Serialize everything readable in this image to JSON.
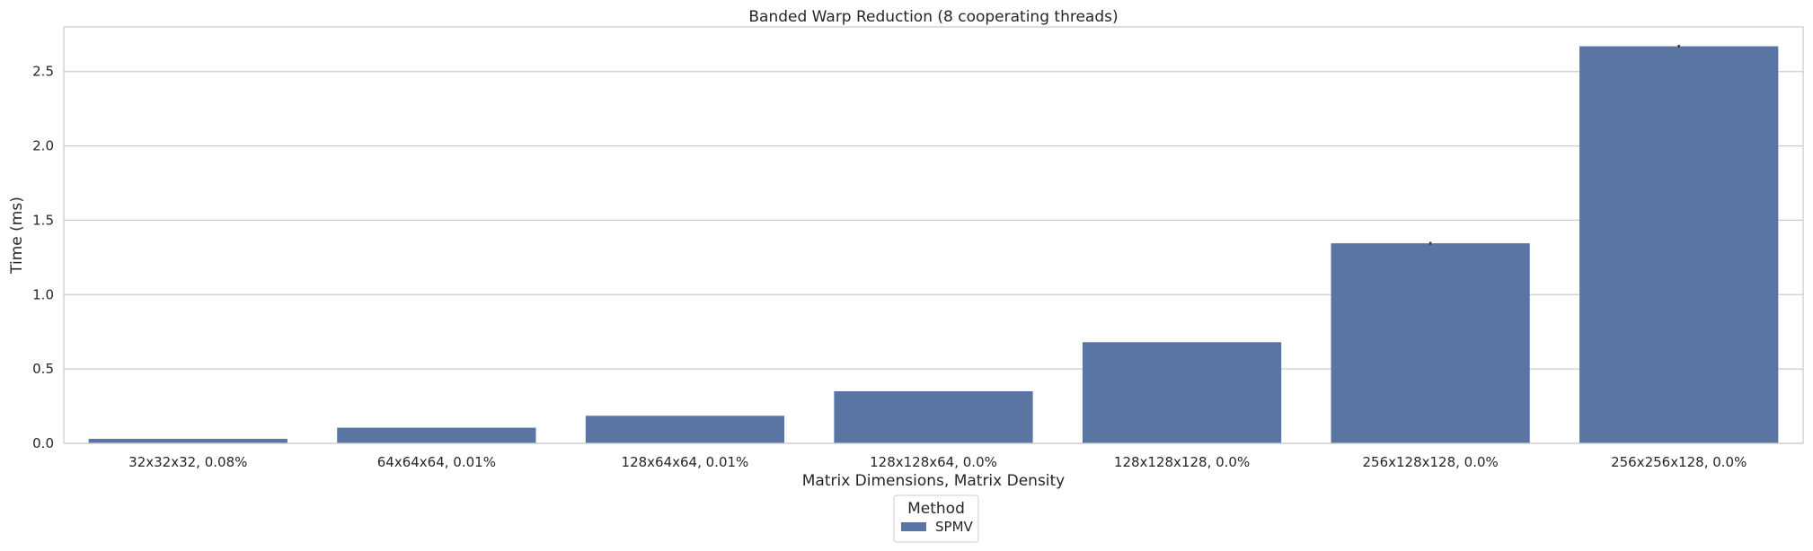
{
  "chart_data": {
    "type": "bar",
    "title": "Banded Warp Reduction (8 cooperating threads)",
    "xlabel": "Matrix Dimensions, Matrix Density",
    "ylabel": "Time (ms)",
    "categories": [
      "32x32x32, 0.08%",
      "64x64x64, 0.01%",
      "128x64x64, 0.01%",
      "128x128x64, 0.0%",
      "128x128x128, 0.0%",
      "256x128x128, 0.0%",
      "256x256x128, 0.0%"
    ],
    "series": [
      {
        "name": "SPMV",
        "color": "#5975a4",
        "values": [
          0.03,
          0.105,
          0.185,
          0.35,
          0.68,
          1.345,
          2.67
        ],
        "error": [
          0.0,
          0.0,
          0.0,
          0.0,
          0.0,
          0.01,
          0.01
        ]
      }
    ],
    "ylim": [
      0,
      2.8
    ],
    "yticks": [
      0.0,
      0.5,
      1.0,
      1.5,
      2.0,
      2.5
    ],
    "ytick_labels": [
      "0.0",
      "0.5",
      "1.0",
      "1.5",
      "2.0",
      "2.5"
    ],
    "grid": true,
    "legend": {
      "title": "Method",
      "placement": "bottom-center"
    }
  }
}
